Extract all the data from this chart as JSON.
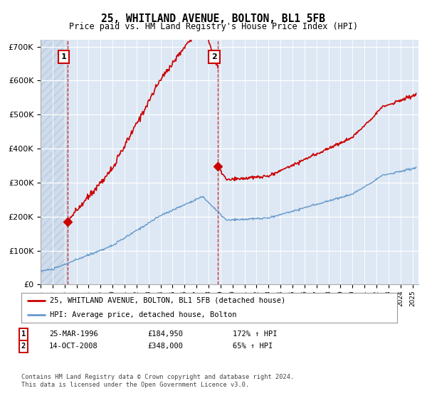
{
  "title": "25, WHITLAND AVENUE, BOLTON, BL1 5FB",
  "subtitle": "Price paid vs. HM Land Registry's House Price Index (HPI)",
  "legend_line1": "25, WHITLAND AVENUE, BOLTON, BL1 5FB (detached house)",
  "legend_line2": "HPI: Average price, detached house, Bolton",
  "house_color": "#cc0000",
  "hpi_color": "#6699cc",
  "background_color": "#dde8f4",
  "ylim": [
    0,
    720000
  ],
  "xlim_min": 1994.0,
  "xlim_max": 2025.5,
  "ylabel_ticks": [
    "£0",
    "£100K",
    "£200K",
    "£300K",
    "£400K",
    "£500K",
    "£600K",
    "£700K"
  ],
  "ytick_vals": [
    0,
    100000,
    200000,
    300000,
    400000,
    500000,
    600000,
    700000
  ],
  "xtick_years": [
    1994,
    1995,
    1996,
    1997,
    1998,
    1999,
    2000,
    2001,
    2002,
    2003,
    2004,
    2005,
    2006,
    2007,
    2008,
    2009,
    2010,
    2011,
    2012,
    2013,
    2014,
    2015,
    2016,
    2017,
    2018,
    2019,
    2020,
    2021,
    2022,
    2023,
    2024,
    2025
  ],
  "ann1_x": 1996.23,
  "ann1_y": 184950,
  "ann2_x": 2008.79,
  "ann2_y": 348000,
  "footer": "Contains HM Land Registry data © Crown copyright and database right 2024.\nThis data is licensed under the Open Government Licence v3.0."
}
